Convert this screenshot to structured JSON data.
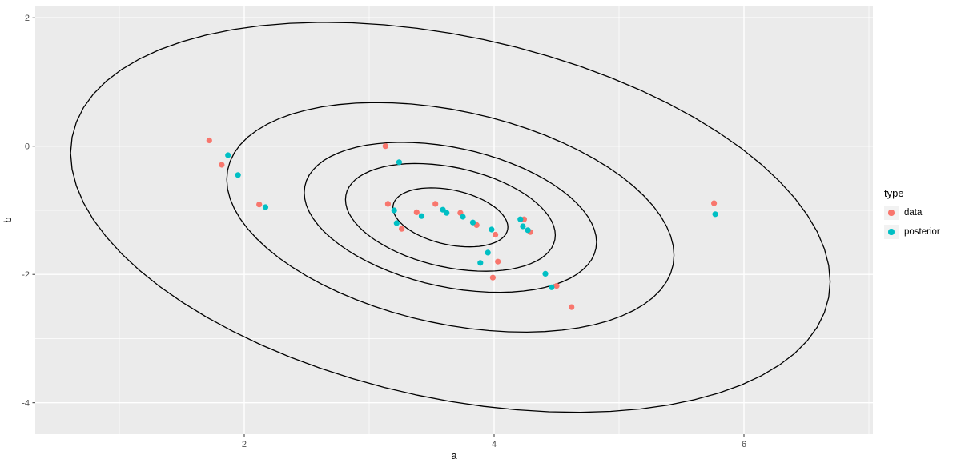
{
  "chart_data": {
    "type": "scatter",
    "title": "",
    "xlabel": "a",
    "ylabel": "b",
    "xlim": [
      0.327,
      7.032
    ],
    "ylim": [
      -4.49,
      2.19
    ],
    "x_ticks": [
      {
        "v": 2,
        "label": "2"
      },
      {
        "v": 4,
        "label": "4"
      },
      {
        "v": 6,
        "label": "6"
      }
    ],
    "y_ticks": [
      {
        "v": 2,
        "label": "2"
      },
      {
        "v": 0,
        "label": "0"
      },
      {
        "v": -2,
        "label": "-2"
      },
      {
        "v": -4,
        "label": "-4"
      }
    ],
    "x_minor": [
      1,
      3,
      5,
      7
    ],
    "y_minor": [
      1,
      -1,
      -3
    ],
    "panel_bg": "#EBEBEB",
    "grid_color": "#FFFFFF",
    "tick_label_color": "#4D4D4D",
    "axis_title_color": "#000000",
    "contours": {
      "shape": "bivariate-normal-ellipses",
      "center": [
        3.65,
        -1.11
      ],
      "sd": [
        1.0,
        1.0
      ],
      "rho": -0.33,
      "scales": [
        0.46,
        0.84,
        1.17,
        1.79,
        3.04
      ],
      "color": "#000000"
    },
    "series": [
      {
        "name": "data",
        "color": "#F8766D",
        "points": [
          [
            1.72,
            0.09
          ],
          [
            1.82,
            -0.29
          ],
          [
            2.12,
            -0.91
          ],
          [
            3.13,
            0.0
          ],
          [
            3.15,
            -0.9
          ],
          [
            3.26,
            -1.29
          ],
          [
            3.38,
            -1.03
          ],
          [
            3.53,
            -0.9
          ],
          [
            3.73,
            -1.04
          ],
          [
            3.86,
            -1.23
          ],
          [
            4.01,
            -1.38
          ],
          [
            4.24,
            -1.14
          ],
          [
            4.29,
            -1.34
          ],
          [
            4.03,
            -1.8
          ],
          [
            3.99,
            -2.05
          ],
          [
            4.5,
            -2.18
          ],
          [
            4.62,
            -2.51
          ],
          [
            5.76,
            -0.89
          ]
        ]
      },
      {
        "name": "posterior",
        "color": "#00BFC4",
        "points": [
          [
            1.87,
            -0.14
          ],
          [
            1.95,
            -0.45
          ],
          [
            2.17,
            -0.95
          ],
          [
            3.24,
            -0.25
          ],
          [
            3.2,
            -1.0
          ],
          [
            3.22,
            -1.2
          ],
          [
            3.42,
            -1.09
          ],
          [
            3.59,
            -0.99
          ],
          [
            3.62,
            -1.04
          ],
          [
            3.75,
            -1.1
          ],
          [
            3.83,
            -1.19
          ],
          [
            3.98,
            -1.3
          ],
          [
            3.95,
            -1.66
          ],
          [
            3.89,
            -1.82
          ],
          [
            4.21,
            -1.14
          ],
          [
            4.23,
            -1.25
          ],
          [
            4.27,
            -1.31
          ],
          [
            4.41,
            -1.99
          ],
          [
            4.46,
            -2.2
          ],
          [
            5.77,
            -1.06
          ]
        ]
      }
    ],
    "legend": {
      "title": "type",
      "position": "right",
      "key_bg": "#F2F2F2",
      "entries": [
        {
          "label": "data",
          "color": "#F8766D"
        },
        {
          "label": "posterior",
          "color": "#00BFC4"
        }
      ]
    }
  }
}
